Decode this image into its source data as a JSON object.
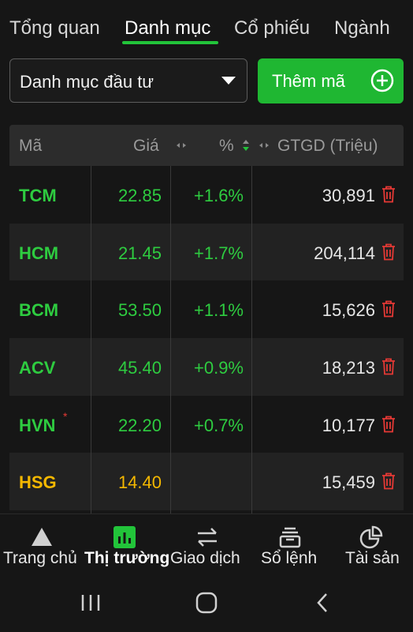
{
  "tabs": [
    "Tổng quan",
    "Danh mục",
    "Cổ phiếu",
    "Ngành"
  ],
  "select": {
    "label": "Danh mục đầu tư"
  },
  "add_button": {
    "label": "Thêm mã"
  },
  "table": {
    "headers": {
      "code": "Mã",
      "price": "Giá",
      "pct": "%",
      "value": "GTGD (Triệu)"
    },
    "rows": [
      {
        "code": "TCM",
        "price": "22.85",
        "pct": "+1.6%",
        "value": "30,891"
      },
      {
        "code": "HCM",
        "price": "21.45",
        "pct": "+1.7%",
        "value": "204,114"
      },
      {
        "code": "BCM",
        "price": "53.50",
        "pct": "+1.1%",
        "value": "15,626"
      },
      {
        "code": "ACV",
        "price": "45.40",
        "pct": "+0.9%",
        "value": "18,213"
      },
      {
        "code": "HVN",
        "price": "22.20",
        "pct": "+0.7%",
        "value": "10,177",
        "flag": "*"
      },
      {
        "code": "HSG",
        "price": "14.40",
        "pct": "",
        "value": "15,459"
      }
    ]
  },
  "bottom_nav": [
    "Trang chủ",
    "Thị trường",
    "Giao dịch",
    "Sổ lệnh",
    "Tài sản"
  ],
  "colors": {
    "up": "#2ecc40",
    "ref": "#f5b800",
    "accent": "#1fb732",
    "delete": "#e53935"
  },
  "icons": {
    "delete": "trash-icon",
    "add": "plus-circle-icon"
  }
}
